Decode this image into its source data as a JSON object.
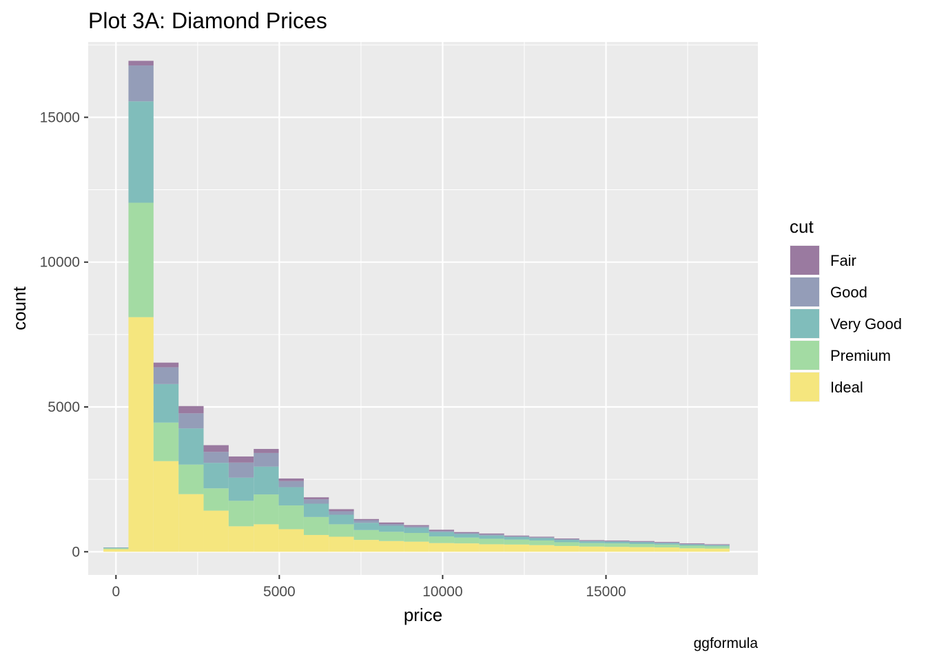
{
  "chart_data": {
    "type": "bar",
    "subtype": "stacked-histogram",
    "title": "Plot 3A: Diamond Prices",
    "xlabel": "price",
    "ylabel": "count",
    "caption": "ggformula",
    "xlim": [
      -850,
      19650
    ],
    "ylim": [
      -800,
      17600
    ],
    "x_ticks": [
      0,
      5000,
      10000,
      15000
    ],
    "x_tick_labels": [
      "0",
      "5000",
      "10000",
      "15000"
    ],
    "y_ticks": [
      0,
      5000,
      10000,
      15000
    ],
    "y_tick_labels": [
      "0",
      "5000",
      "10000",
      "15000"
    ],
    "grid": true,
    "legend_title": "cut",
    "legend_position": "right",
    "bin_edges": [
      -383,
      383,
      1150,
      1917,
      2683,
      3450,
      4217,
      4983,
      5750,
      6517,
      7283,
      8050,
      8817,
      9583,
      10350,
      11117,
      11883,
      12650,
      13417,
      14183,
      14950,
      15717,
      16483,
      17250,
      18017,
      18783
    ],
    "series": [
      {
        "name": "Ideal",
        "color": "#f5e67e",
        "values": [
          90,
          8100,
          3130,
          1990,
          1420,
          880,
          950,
          780,
          580,
          520,
          410,
          370,
          350,
          300,
          290,
          260,
          250,
          230,
          200,
          180,
          170,
          160,
          150,
          120,
          110
        ]
      },
      {
        "name": "Premium",
        "color": "#a3dba3",
        "values": [
          30,
          3950,
          1330,
          1020,
          770,
          880,
          1030,
          820,
          620,
          430,
          340,
          320,
          300,
          230,
          200,
          190,
          170,
          160,
          130,
          120,
          120,
          110,
          100,
          90,
          80
        ]
      },
      {
        "name": "Very Good",
        "color": "#80bdbb",
        "values": [
          20,
          3500,
          1330,
          1250,
          880,
          800,
          960,
          630,
          460,
          330,
          250,
          210,
          180,
          150,
          120,
          110,
          90,
          80,
          80,
          60,
          60,
          60,
          50,
          40,
          40
        ]
      },
      {
        "name": "Good",
        "color": "#949db8",
        "values": [
          10,
          1240,
          580,
          520,
          380,
          520,
          470,
          210,
          150,
          120,
          90,
          60,
          50,
          40,
          40,
          40,
          30,
          30,
          30,
          20,
          20,
          20,
          20,
          20,
          10
        ]
      },
      {
        "name": "Fair",
        "color": "#9a7aa0",
        "values": [
          0,
          160,
          160,
          250,
          230,
          210,
          140,
          90,
          70,
          70,
          40,
          50,
          40,
          40,
          30,
          30,
          20,
          20,
          20,
          20,
          20,
          20,
          20,
          20,
          20
        ]
      }
    ]
  }
}
